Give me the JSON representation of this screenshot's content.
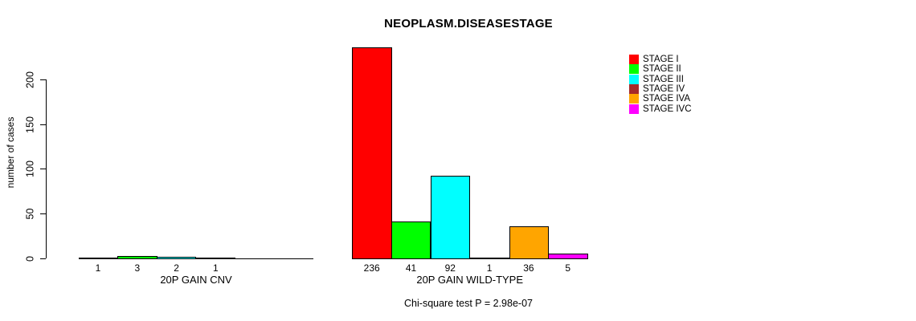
{
  "title": "NEOPLASM.DISEASESTAGE",
  "footnote": "Chi-square test P = 2.98e-07",
  "chart_data": {
    "type": "bar",
    "title": "NEOPLASM.DISEASESTAGE",
    "xlabel": "",
    "ylabel": "number of cases",
    "ylim": [
      0,
      200
    ],
    "yticks": [
      "0",
      "50",
      "100",
      "150",
      "200"
    ],
    "grid": false,
    "legend_position": "right-inside",
    "background_color": "#ffffff",
    "bar_border_color": "#000000",
    "series_labels": [
      "STAGE I",
      "STAGE II",
      "STAGE III",
      "STAGE IV",
      "STAGE IVA",
      "STAGE IVC"
    ],
    "series_colors": [
      "#ff0000",
      "#00ff00",
      "#00ffff",
      "#a52a2a",
      "#ffa500",
      "#ff00ff"
    ],
    "groups": [
      {
        "label": "20P GAIN CNV",
        "values": [
          1,
          3,
          2,
          1,
          0,
          0
        ],
        "bar_labels": [
          "1",
          "3",
          "2",
          "1",
          "",
          ""
        ]
      },
      {
        "label": "20P GAIN WILD-TYPE",
        "values": [
          236,
          41,
          92,
          1,
          36,
          5
        ],
        "bar_labels": [
          "236",
          "41",
          "92",
          "1",
          "36",
          "5"
        ]
      }
    ],
    "footnote": "Chi-square test P = 2.98e-07"
  }
}
